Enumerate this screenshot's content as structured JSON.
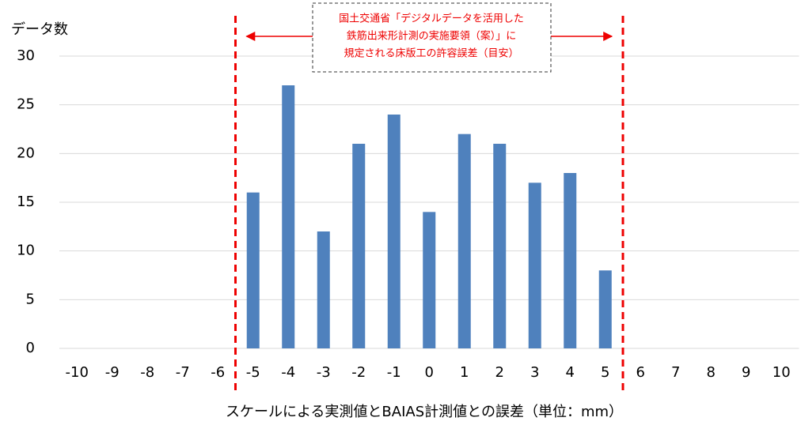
{
  "chart_data": {
    "type": "bar",
    "y_axis_label": "データ数",
    "x_axis_label": "スケールによる実測値とBAIAS計測値との誤差（単位：mm）",
    "annotation": [
      "国土交通省「デジタルデータを活用した",
      "鉄筋出来形計測の実施要領（案）」に",
      "規定される床版工の許容誤差（目安）"
    ],
    "categories": [
      "-10",
      "-9",
      "-8",
      "-7",
      "-6",
      "-5",
      "-4",
      "-3",
      "-2",
      "-1",
      "0",
      "1",
      "2",
      "3",
      "4",
      "5",
      "6",
      "7",
      "8",
      "9",
      "10"
    ],
    "values": [
      0,
      0,
      0,
      0,
      0,
      16,
      27,
      12,
      21,
      24,
      14,
      22,
      21,
      17,
      18,
      8,
      0,
      0,
      0,
      0,
      0
    ],
    "color": "#4f81bd",
    "ylim": [
      0,
      30
    ],
    "yticks": [
      0,
      5,
      10,
      15,
      20,
      25,
      30
    ],
    "grid": true
  }
}
